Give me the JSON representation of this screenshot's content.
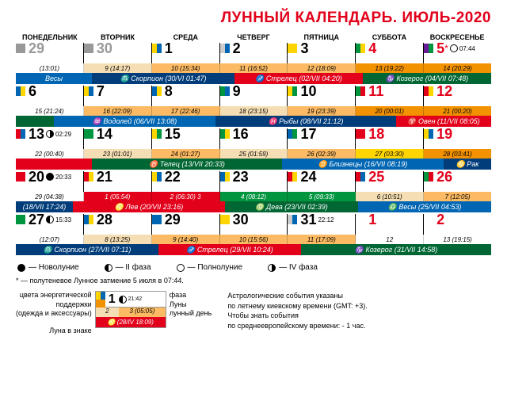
{
  "title": "ЛУННЫЙ КАЛЕНДАРЬ. ИЮЛЬ-2020",
  "weekdays": [
    "ПОНЕДЕЛЬНИК",
    "ВТОРНИК",
    "СРЕДА",
    "ЧЕТВЕРГ",
    "ПЯТНИЦА",
    "СУББОТА",
    "ВОСКРЕСЕНЬЕ"
  ],
  "colors": {
    "yellow": "#ffd500",
    "blue": "#0066b3",
    "green": "#009640",
    "red": "#e2001a",
    "orange": "#f39200",
    "darkblue": "#003d7a",
    "beige": "#f5deb3",
    "ltorange": "#fbba63",
    "gray": "#ccc",
    "dkgreen": "#006633"
  },
  "weeks": [
    {
      "days": [
        {
          "num": "29",
          "color": "gray",
          "sq": [
            "#999",
            "#999"
          ],
          "time": "",
          "ld": "(13:01)",
          "ldc": "#fff"
        },
        {
          "num": "30",
          "color": "gray",
          "sq": [
            "#999",
            "#999"
          ],
          "time": "",
          "ld": "9 (14:17)",
          "ldc": "#f5deb3"
        },
        {
          "num": "1",
          "color": "",
          "sq": [
            "#ffd500",
            "#0066b3"
          ],
          "time": "",
          "ld": "10 (15:34)",
          "ldc": "#fbba63"
        },
        {
          "num": "2",
          "color": "",
          "sq": [
            "#ccc",
            "#0066b3"
          ],
          "time": "",
          "ld": "11 (16:52)",
          "ldc": "#fbba63"
        },
        {
          "num": "3",
          "color": "",
          "sq": [
            "#ffd500",
            "#ffd500"
          ],
          "time": "",
          "ld": "12 (18:09)",
          "ldc": "#fbba63"
        },
        {
          "num": "4",
          "color": "red",
          "sq": [
            "#009640",
            "#ffd500"
          ],
          "time": "",
          "ld": "13 (19:22)",
          "ldc": "#f39200"
        },
        {
          "num": "5",
          "color": "red",
          "sq": [
            "#6a1b9a",
            "#009640"
          ],
          "time": "07:44",
          "moon": "full",
          "star": "*",
          "ld": "14 (20:29)",
          "ldc": "#f39200"
        }
      ],
      "signs": [
        {
          "label": "Весы",
          "pct": 16,
          "bg": "#0066b3"
        },
        {
          "label": "♏ Скорпион (30/VI 01:47)",
          "pct": 30,
          "bg": "#003d7a"
        },
        {
          "label": "♐ Стрелец (02/VII 04:20)",
          "pct": 27,
          "bg": "#e2001a"
        },
        {
          "label": "♑ Козерог (04/VII 07:48)",
          "pct": 27,
          "bg": "#006633"
        }
      ]
    },
    {
      "days": [
        {
          "num": "6",
          "color": "",
          "sq": [
            "#0066b3",
            "#ffd500"
          ],
          "time": "",
          "ld": "15 (21:24)",
          "ldc": "#fff"
        },
        {
          "num": "7",
          "color": "",
          "sq": [
            "#ffd500",
            "#0066b3"
          ],
          "time": "",
          "ld": "16 (22:09)",
          "ldc": "#fbba63"
        },
        {
          "num": "8",
          "color": "",
          "sq": [
            "#0066b3",
            "#ffd500"
          ],
          "time": "",
          "ld": "17 (22:46)",
          "ldc": "#fbba63"
        },
        {
          "num": "9",
          "color": "",
          "sq": [
            "#009640",
            "#0066b3"
          ],
          "time": "",
          "ld": "18 (23:15)",
          "ldc": "#f5deb3"
        },
        {
          "num": "10",
          "color": "",
          "sq": [
            "#ffd500",
            "#009640"
          ],
          "time": "",
          "ld": "19 (23:39)",
          "ldc": "#fbba63"
        },
        {
          "num": "11",
          "color": "red",
          "sq": [
            "#009640",
            "#e2001a"
          ],
          "time": "",
          "ld": "20 (00:01)",
          "ldc": "#f39200"
        },
        {
          "num": "12",
          "color": "red",
          "sq": [
            "#e2001a",
            "#ffd500"
          ],
          "time": "",
          "ld": "21 (00:20)",
          "ldc": "#f39200"
        }
      ],
      "signs": [
        {
          "label": "",
          "pct": 8,
          "bg": "#006633"
        },
        {
          "label": "♒ Водолей (06/VII 13:08)",
          "pct": 34,
          "bg": "#0066b3"
        },
        {
          "label": "♓ Рыбы (08/VII 21:12)",
          "pct": 38,
          "bg": "#003d7a"
        },
        {
          "label": "♈ Овен (11/VII 08:05)",
          "pct": 20,
          "bg": "#e2001a"
        }
      ]
    },
    {
      "days": [
        {
          "num": "13",
          "color": "",
          "sq": [
            "#e2001a",
            "#0066b3"
          ],
          "time": "02:29",
          "moon": "q3",
          "ld": "22 (00:40)",
          "ldc": "#fff"
        },
        {
          "num": "14",
          "color": "",
          "sq": [
            "#009640",
            "#009640"
          ],
          "time": "",
          "ld": "23 (01:01)",
          "ldc": "#f5deb3"
        },
        {
          "num": "15",
          "color": "",
          "sq": [
            "#ffd500",
            "#009640"
          ],
          "time": "",
          "ld": "24 (01:27)",
          "ldc": "#fbba63"
        },
        {
          "num": "16",
          "color": "",
          "sq": [
            "#009640",
            "#ffd500"
          ],
          "time": "",
          "ld": "25 (01:59)",
          "ldc": "#f5deb3"
        },
        {
          "num": "17",
          "color": "",
          "sq": [
            "#0066b3",
            "#009640"
          ],
          "time": "",
          "ld": "26 (02:39)",
          "ldc": "#fbba63"
        },
        {
          "num": "18",
          "color": "red",
          "sq": [
            "#e2001a",
            "#e2001a"
          ],
          "time": "",
          "ld": "27 (03:30)",
          "ldc": "#ffd500"
        },
        {
          "num": "19",
          "color": "red",
          "sq": [
            "#ffd500",
            "#0066b3"
          ],
          "time": "",
          "ld": "28 (03:41)",
          "ldc": "#f39200"
        }
      ],
      "signs": [
        {
          "label": "",
          "pct": 16,
          "bg": "#e2001a"
        },
        {
          "label": "♉ Телец (13/VII 20:33)",
          "pct": 40,
          "bg": "#006633"
        },
        {
          "label": "♊ Близнецы (16/VII 08:19)",
          "pct": 34,
          "bg": "#0066b3"
        },
        {
          "label": "♋ Рак",
          "pct": 10,
          "bg": "#003d7a"
        }
      ]
    },
    {
      "days": [
        {
          "num": "20",
          "color": "",
          "sq": [
            "#e2001a",
            "#e2001a"
          ],
          "time": "20:33",
          "moon": "new",
          "ld": "29 (04:38)",
          "ldc": "#fff"
        },
        {
          "num": "21",
          "color": "",
          "sq": [
            "#e2001a",
            "#ffd500"
          ],
          "time": "",
          "ld": "1 (05:54)",
          "ldc": "#e2001a",
          "ldtc": "#fff"
        },
        {
          "num": "22",
          "color": "",
          "sq": [
            "#ffd500",
            "#0066b3"
          ],
          "time": "",
          "ld": "2 (06:30) 3",
          "ldc": "#e2001a",
          "ldtc": "#fff"
        },
        {
          "num": "23",
          "color": "",
          "sq": [
            "#0066b3",
            "#ffd500"
          ],
          "time": "",
          "ld": "4 (08:12)",
          "ldc": "#009640",
          "ldtc": "#fff"
        },
        {
          "num": "24",
          "color": "",
          "sq": [
            "#e2001a",
            "#ffd500"
          ],
          "time": "",
          "ld": "5 (09:33)",
          "ldc": "#009640",
          "ldtc": "#fff"
        },
        {
          "num": "25",
          "color": "red",
          "sq": [
            "#e2001a",
            "#0066b3"
          ],
          "time": "",
          "ld": "6 (10:51)",
          "ldc": "#f5deb3"
        },
        {
          "num": "26",
          "color": "red",
          "sq": [
            "#009640",
            "#e2001a"
          ],
          "time": "",
          "ld": "7 (12:05)",
          "ldc": "#fbba63"
        }
      ],
      "signs": [
        {
          "label": "(18/VII 17:24)",
          "pct": 12,
          "bg": "#003d7a"
        },
        {
          "label": "♌ Лев (20/VII 23:16)",
          "pct": 32,
          "bg": "#e2001a"
        },
        {
          "label": "♍ Дева (23/VII 02:39)",
          "pct": 28,
          "bg": "#006633"
        },
        {
          "label": "♎ Весы (25/VII 04:53)",
          "pct": 28,
          "bg": "#0066b3"
        }
      ]
    },
    {
      "days": [
        {
          "num": "27",
          "color": "",
          "sq": [
            "#009640",
            "#009640"
          ],
          "time": "15:33",
          "moon": "q1",
          "ld": "(12:07)",
          "ldc": "#fff"
        },
        {
          "num": "28",
          "color": "",
          "sq": [
            "#0066b3",
            "#ffd500"
          ],
          "time": "",
          "ld": "8 (13:25)",
          "ldc": "#f5deb3"
        },
        {
          "num": "29",
          "color": "",
          "sq": [
            "#0066b3",
            "#0066b3"
          ],
          "time": "",
          "ld": "9 (14:40)",
          "ldc": "#fbba63"
        },
        {
          "num": "30",
          "color": "",
          "sq": [
            "#ffd500",
            "#ffd500"
          ],
          "time": "",
          "ld": "10 (15:56)",
          "ldc": "#fbba63"
        },
        {
          "num": "31",
          "color": "",
          "sq": [
            "#ccc",
            "#0066b3"
          ],
          "time": "22:12",
          "ld": "11 (17:09)",
          "ldc": "#fbba63"
        },
        {
          "num": "1",
          "color": "red",
          "sq": [
            "#fff",
            "#fff"
          ],
          "time": "",
          "ld": "12",
          "ldc": "#fff"
        },
        {
          "num": "2",
          "color": "red",
          "sq": [
            "#fff",
            "#fff"
          ],
          "time": "",
          "ld": "13 (19:15)",
          "ldc": "#fff"
        }
      ],
      "signs": [
        {
          "label": "♏ Скорпион (27/VII 07:11)",
          "pct": 30,
          "bg": "#003d7a"
        },
        {
          "label": "♐ Стрелец (29/VII 10:24)",
          "pct": 30,
          "bg": "#e2001a"
        },
        {
          "label": "♑ Козерог (31/VII 14:58)",
          "pct": 40,
          "bg": "#006633"
        }
      ]
    }
  ],
  "phases": [
    {
      "label": "— Новолуние",
      "moon": "new"
    },
    {
      "label": "— II фаза",
      "moon": "q1"
    },
    {
      "label": "— Полнолуние",
      "moon": "full"
    },
    {
      "label": "— IV фаза",
      "moon": "q3"
    }
  ],
  "eclipse": "* — полутеневое Лунное затмение 5 июля в 07:44.",
  "key": {
    "l1": "цвета энергетической",
    "l2": "поддержки",
    "l3": "(одежда и аксессуары)",
    "l4": "Луна в знаке",
    "r1": "фаза",
    "r2": "Луны",
    "r3": "лунный день",
    "num": "1",
    "time": "21:42",
    "ld1": "2",
    "ld2": "3 (05:05)",
    "sign": "♌ (28/IV 18:09)"
  },
  "info": {
    "l1": "Астрологические события указаны",
    "l2": "по летнему киевскому времени (GMT: +3).",
    "l3": "Чтобы знать события",
    "l4": "по среднеевропейскому времени: - 1 час."
  }
}
